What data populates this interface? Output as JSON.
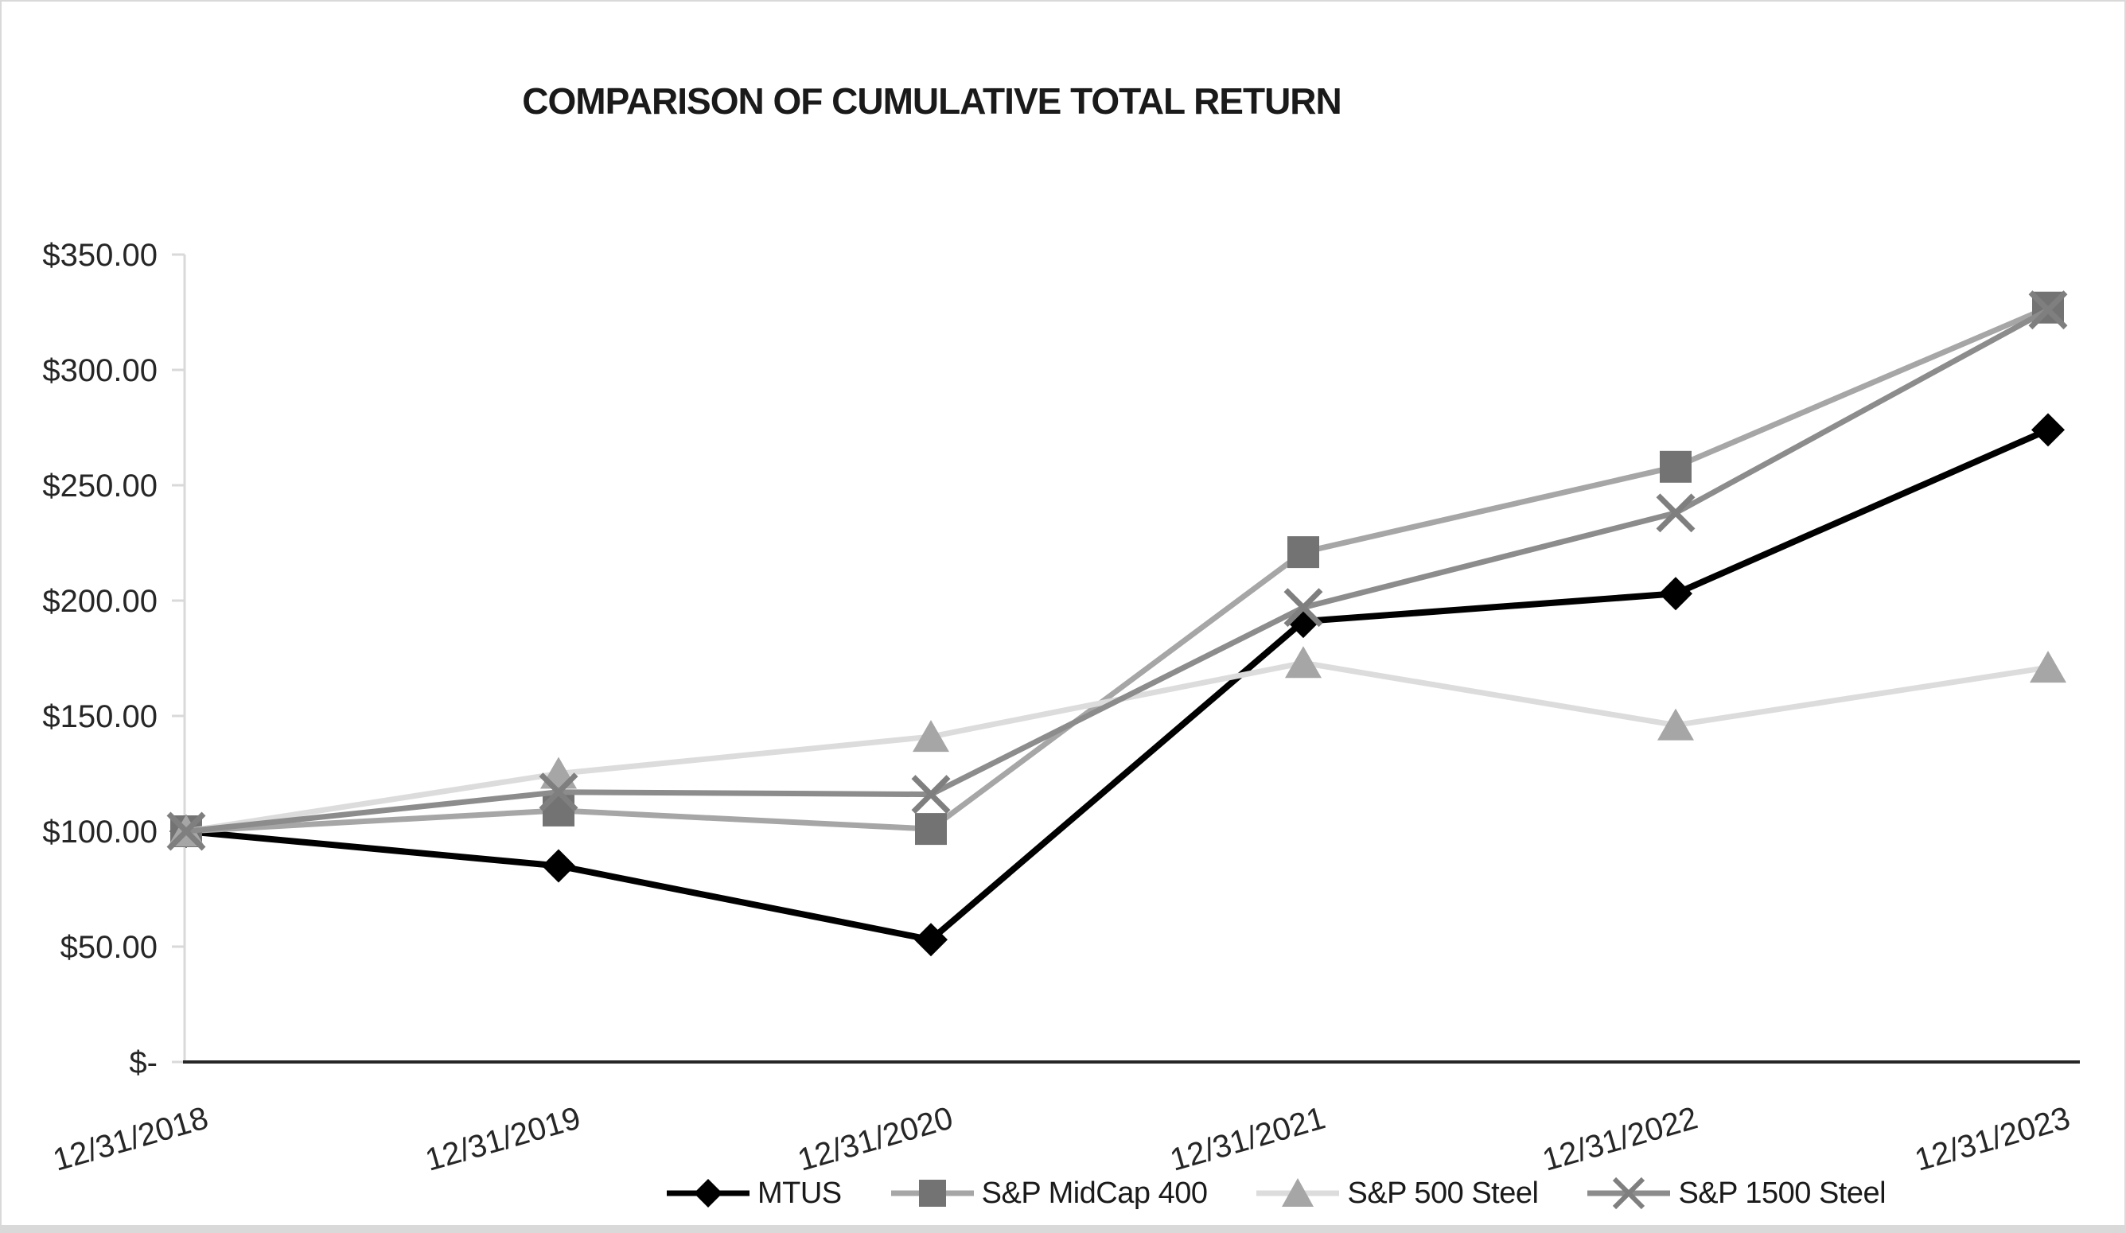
{
  "chart": {
    "title": "COMPARISON OF CUMULATIVE TOTAL RETURN"
  },
  "chart_data": {
    "type": "line",
    "title": "COMPARISON OF CUMULATIVE TOTAL RETURN",
    "categories": [
      "12/31/2018",
      "12/31/2019",
      "12/31/2020",
      "12/31/2021",
      "12/31/2022",
      "12/31/2023"
    ],
    "series": [
      {
        "name": "MTUS",
        "marker": "diamond",
        "line_color": "#000000",
        "marker_color": "#000000",
        "values": [
          100,
          85,
          53,
          191,
          203,
          274
        ]
      },
      {
        "name": "S&P MidCap 400",
        "marker": "square",
        "line_color": "#a6a6a6",
        "marker_color": "#737373",
        "values": [
          100,
          109,
          101,
          221,
          258,
          327
        ]
      },
      {
        "name": "S&P 500 Steel",
        "marker": "triangle",
        "line_color": "#dcdcdc",
        "marker_color": "#a6a6a6",
        "values": [
          100,
          125,
          141,
          173,
          146,
          171
        ]
      },
      {
        "name": "S&P 1500 Steel",
        "marker": "x",
        "line_color": "#8c8c8c",
        "marker_color": "#7f7f7f",
        "values": [
          100,
          117,
          116,
          197,
          238,
          326
        ]
      }
    ],
    "y_ticks": [
      {
        "label": "$350.00",
        "value": 350
      },
      {
        "label": "$300.00",
        "value": 300
      },
      {
        "label": "$250.00",
        "value": 250
      },
      {
        "label": "$200.00",
        "value": 200
      },
      {
        "label": "$150.00",
        "value": 150
      },
      {
        "label": "$100.00",
        "value": 100
      },
      {
        "label": "$50.00",
        "value": 50
      },
      {
        "label": "$-",
        "value": 0
      }
    ],
    "ylim": [
      0,
      350
    ],
    "grid": false,
    "legend_position": "bottom"
  }
}
